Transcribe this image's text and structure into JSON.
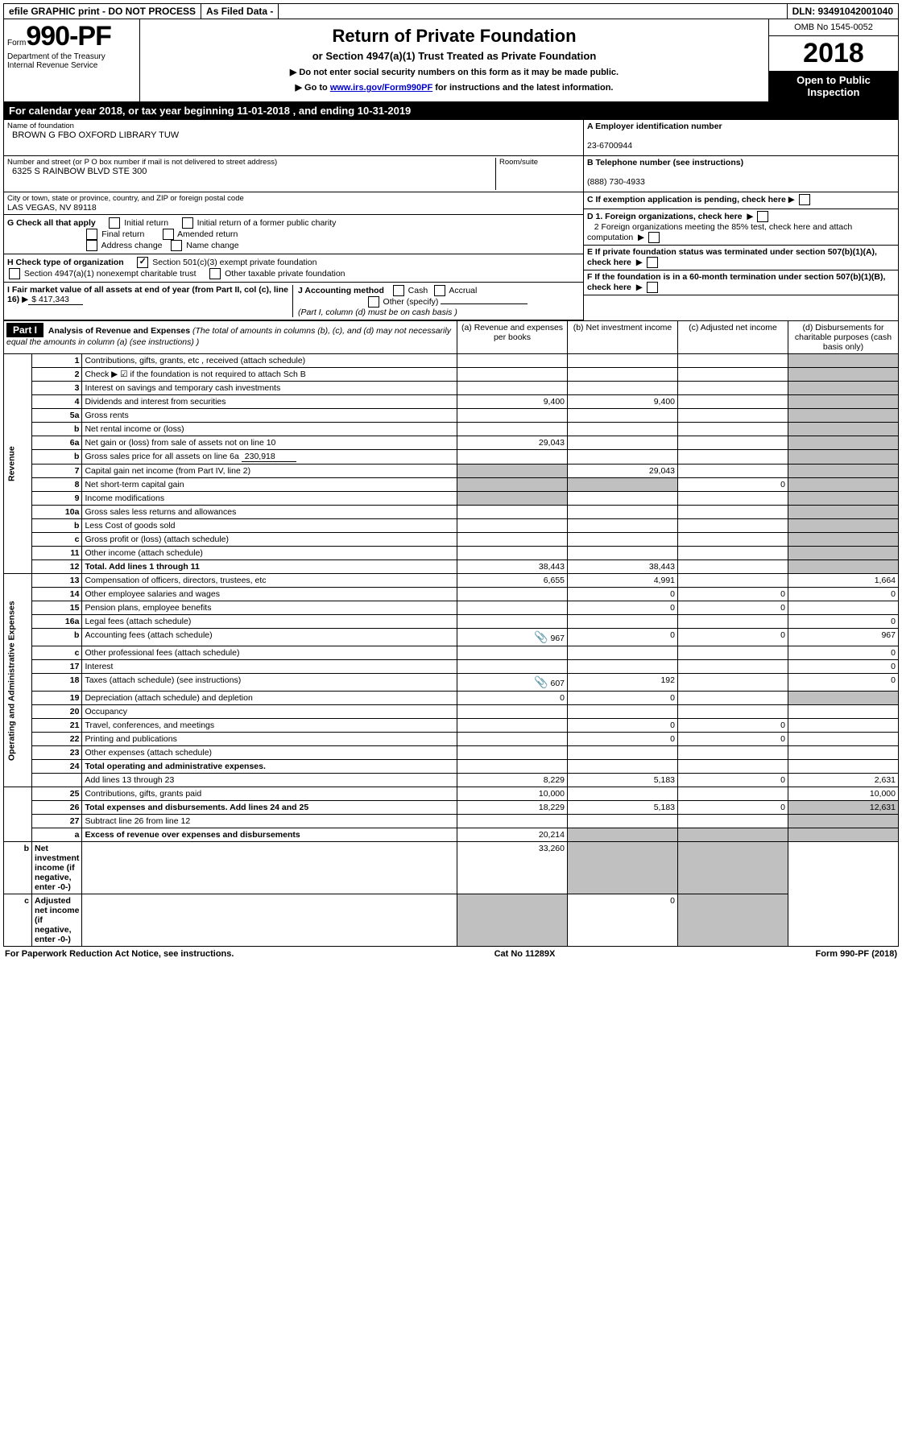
{
  "top": {
    "efile": "efile GRAPHIC print - DO NOT PROCESS",
    "asfiled": "As Filed Data -",
    "dln": "DLN: 93491042001040"
  },
  "header": {
    "form_prefix": "Form",
    "form_number": "990-PF",
    "dept": "Department of the Treasury",
    "irs": "Internal Revenue Service",
    "title": "Return of Private Foundation",
    "subtitle": "or Section 4947(a)(1) Trust Treated as Private Foundation",
    "instr1": "▶ Do not enter social security numbers on this form as it may be made public.",
    "instr2_pre": "▶ Go to ",
    "instr2_link": "www.irs.gov/Form990PF",
    "instr2_post": " for instructions and the latest information.",
    "omb": "OMB No 1545-0052",
    "year": "2018",
    "open": "Open to Public Inspection"
  },
  "cal": {
    "text": "For calendar year 2018, or tax year beginning 11-01-2018               , and ending 10-31-2019"
  },
  "ident": {
    "name_lbl": "Name of foundation",
    "name": "BROWN G FBO OXFORD LIBRARY TUW",
    "addr_lbl": "Number and street (or P O  box number if mail is not delivered to street address)",
    "addr": "6325 S RAINBOW BLVD STE 300",
    "room_lbl": "Room/suite",
    "city_lbl": "City or town, state or province, country, and ZIP or foreign postal code",
    "city": "LAS VEGAS, NV  89118",
    "a_lbl": "A Employer identification number",
    "ein": "23-6700944",
    "b_lbl": "B Telephone number (see instructions)",
    "phone": "(888) 730-4933",
    "c_lbl": "C If exemption application is pending, check here"
  },
  "g": {
    "lbl": "G Check all that apply",
    "o1": "Initial return",
    "o2": "Initial return of a former public charity",
    "o3": "Final return",
    "o4": "Amended return",
    "o5": "Address change",
    "o6": "Name change"
  },
  "h": {
    "lbl": "H Check type of organization",
    "o1": "Section 501(c)(3) exempt private foundation",
    "o2": "Section 4947(a)(1) nonexempt charitable trust",
    "o3": "Other taxable private foundation"
  },
  "i": {
    "lbl": "I Fair market value of all assets at end of year (from Part II, col  (c), line 16)",
    "val": "$  417,343"
  },
  "j": {
    "lbl": "J Accounting method",
    "o1": "Cash",
    "o2": "Accrual",
    "o3": "Other (specify)",
    "note": "(Part I, column (d) must be on cash basis )"
  },
  "d": {
    "d1": "D 1. Foreign organizations, check here",
    "d2": "2  Foreign organizations meeting the 85% test, check here and attach computation"
  },
  "e": {
    "lbl": "E   If private foundation status was terminated under section 507(b)(1)(A), check here"
  },
  "f": {
    "lbl": "F   If the foundation is in a 60-month termination under section 507(b)(1)(B), check here"
  },
  "part1": {
    "title": "Part I",
    "desc_bold": "Analysis of Revenue and Expenses",
    "desc_rest": " (The total of amounts in columns (b), (c), and (d) may not necessarily equal the amounts in column (a) (see instructions) )",
    "cols": {
      "a": "(a)   Revenue and expenses per books",
      "b": "(b)   Net investment income",
      "c": "(c)   Adjusted net income",
      "d": "(d)   Disbursements for charitable purposes (cash basis only)"
    },
    "side_rev": "Revenue",
    "side_exp": "Operating and Administrative Expenses"
  },
  "rows": [
    {
      "n": "1",
      "d": "Contributions, gifts, grants, etc , received (attach schedule)"
    },
    {
      "n": "2",
      "d": "Check ▶ ☑ if the foundation is not required to attach Sch  B"
    },
    {
      "n": "3",
      "d": "Interest on savings and temporary cash investments"
    },
    {
      "n": "4",
      "d": "Dividends and interest from securities",
      "a": "9,400",
      "b": "9,400"
    },
    {
      "n": "5a",
      "d": "Gross rents"
    },
    {
      "n": "b",
      "d": "Net rental income or (loss)"
    },
    {
      "n": "6a",
      "d": "Net gain or (loss) from sale of assets not on line 10",
      "a": "29,043"
    },
    {
      "n": "b",
      "d": "Gross sales price for all assets on line 6a",
      "extra": "230,918"
    },
    {
      "n": "7",
      "d": "Capital gain net income (from Part IV, line 2)",
      "b": "29,043"
    },
    {
      "n": "8",
      "d": "Net short-term capital gain",
      "c": "0"
    },
    {
      "n": "9",
      "d": "Income modifications"
    },
    {
      "n": "10a",
      "d": "Gross sales less returns and allowances"
    },
    {
      "n": "b",
      "d": "Less  Cost of goods sold"
    },
    {
      "n": "c",
      "d": "Gross profit or (loss) (attach schedule)"
    },
    {
      "n": "11",
      "d": "Other income (attach schedule)"
    },
    {
      "n": "12",
      "d": "Total. Add lines 1 through 11",
      "a": "38,443",
      "b": "38,443",
      "bold": true
    },
    {
      "n": "13",
      "d": "Compensation of officers, directors, trustees, etc",
      "a": "6,655",
      "b": "4,991",
      "dd": "1,664"
    },
    {
      "n": "14",
      "d": "Other employee salaries and wages",
      "b": "0",
      "c": "0",
      "dd": "0"
    },
    {
      "n": "15",
      "d": "Pension plans, employee benefits",
      "b": "0",
      "c": "0"
    },
    {
      "n": "16a",
      "d": "Legal fees (attach schedule)",
      "dd": "0"
    },
    {
      "n": "b",
      "d": "Accounting fees (attach schedule)",
      "icon": true,
      "a": "967",
      "b": "0",
      "c": "0",
      "dd": "967"
    },
    {
      "n": "c",
      "d": "Other professional fees (attach schedule)",
      "dd": "0"
    },
    {
      "n": "17",
      "d": "Interest",
      "dd": "0"
    },
    {
      "n": "18",
      "d": "Taxes (attach schedule) (see instructions)",
      "icon": true,
      "a": "607",
      "b": "192",
      "dd": "0"
    },
    {
      "n": "19",
      "d": "Depreciation (attach schedule) and depletion",
      "a": "0",
      "b": "0"
    },
    {
      "n": "20",
      "d": "Occupancy"
    },
    {
      "n": "21",
      "d": "Travel, conferences, and meetings",
      "b": "0",
      "c": "0"
    },
    {
      "n": "22",
      "d": "Printing and publications",
      "b": "0",
      "c": "0"
    },
    {
      "n": "23",
      "d": "Other expenses (attach schedule)"
    },
    {
      "n": "24",
      "d": "Total operating and administrative expenses.",
      "bold": true
    },
    {
      "n": "",
      "d": "Add lines 13 through 23",
      "a": "8,229",
      "b": "5,183",
      "c": "0",
      "dd": "2,631"
    },
    {
      "n": "25",
      "d": "Contributions, gifts, grants paid",
      "a": "10,000",
      "dd": "10,000"
    },
    {
      "n": "26",
      "d": "Total expenses and disbursements. Add lines 24 and 25",
      "a": "18,229",
      "b": "5,183",
      "c": "0",
      "dd": "12,631",
      "bold": true
    },
    {
      "n": "27",
      "d": "Subtract line 26 from line 12"
    },
    {
      "n": "a",
      "d": "Excess of revenue over expenses and disbursements",
      "a": "20,214",
      "bold": true
    },
    {
      "n": "b",
      "d": "Net investment income (if negative, enter -0-)",
      "b": "33,260",
      "bold": true
    },
    {
      "n": "c",
      "d": "Adjusted net income (if negative, enter -0-)",
      "c": "0",
      "bold": true
    }
  ],
  "footer": {
    "left": "For Paperwork Reduction Act Notice, see instructions.",
    "mid": "Cat  No  11289X",
    "right": "Form 990-PF (2018)"
  }
}
